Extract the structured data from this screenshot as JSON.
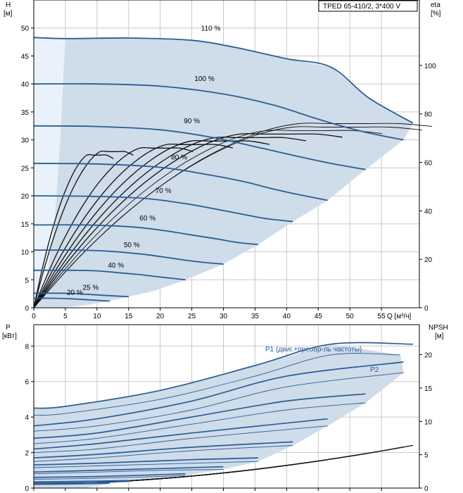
{
  "chart_data": [
    {
      "type": "line",
      "legend_box": "TPED 65-410/2, 3*400 V",
      "xlabel": "Q [м³/ч]",
      "ylabel_top": "H",
      "ylabel_bottom": "[м]",
      "y2label_top": "eta",
      "y2label_bottom": "[%]",
      "xlim": [
        0,
        61
      ],
      "ylim": [
        0,
        55
      ],
      "y2lim": [
        0,
        127
      ],
      "x_ticks": [
        "0",
        "5",
        "10",
        "15",
        "20",
        "25",
        "30",
        "35",
        "40",
        "45",
        "50",
        "55"
      ],
      "y_ticks": [
        "0",
        "5",
        "10",
        "15",
        "20",
        "25",
        "30",
        "35",
        "40",
        "45",
        "50"
      ],
      "y2_ticks": [
        "0",
        "20",
        "40",
        "60",
        "80",
        "100"
      ],
      "grid": true,
      "head_curves": [
        {
          "label": "110 %",
          "label_at": [
            28,
            49.5
          ],
          "points": [
            [
              0,
              48.3
            ],
            [
              5,
              48.1
            ],
            [
              15,
              48.2
            ],
            [
              25,
              47.8
            ],
            [
              32,
              46.5
            ],
            [
              40,
              44.5
            ],
            [
              47,
              43
            ],
            [
              53,
              37.5
            ],
            [
              60,
              33
            ]
          ]
        },
        {
          "label": "100 %",
          "label_at": [
            27,
            40.5
          ],
          "points": [
            [
              0,
              40
            ],
            [
              10,
              40
            ],
            [
              20,
              39.6
            ],
            [
              30,
              38.2
            ],
            [
              38,
              36.2
            ],
            [
              45,
              33.7
            ],
            [
              52,
              31.5
            ],
            [
              58.5,
              30
            ]
          ]
        },
        {
          "label": "90 %",
          "label_at": [
            25,
            33
          ],
          "points": [
            [
              0,
              32.5
            ],
            [
              10,
              32.4
            ],
            [
              20,
              31.8
            ],
            [
              28,
              30.5
            ],
            [
              35,
              28.8
            ],
            [
              42,
              27
            ],
            [
              47,
              25.8
            ],
            [
              52.5,
              24.7
            ]
          ]
        },
        {
          "label": "80 %",
          "label_at": [
            23,
            26.5
          ],
          "points": [
            [
              0,
              25.8
            ],
            [
              10,
              25.7
            ],
            [
              20,
              25.1
            ],
            [
              27,
              23.9
            ],
            [
              33,
              22.6
            ],
            [
              38,
              21.2
            ],
            [
              42,
              20.2
            ],
            [
              46.5,
              19.2
            ]
          ]
        },
        {
          "label": "70 %",
          "label_at": [
            20.5,
            20.5
          ],
          "points": [
            [
              0,
              20
            ],
            [
              10,
              19.9
            ],
            [
              18,
              19.5
            ],
            [
              24,
              18.6
            ],
            [
              29,
              17.6
            ],
            [
              34,
              16.5
            ],
            [
              37,
              15.9
            ],
            [
              41,
              15.4
            ]
          ]
        },
        {
          "label": "60 %",
          "label_at": [
            18,
            15.6
          ],
          "points": [
            [
              0,
              14.8
            ],
            [
              8,
              14.8
            ],
            [
              15,
              14.5
            ],
            [
              20,
              13.9
            ],
            [
              25,
              13
            ],
            [
              29,
              12.3
            ],
            [
              32,
              11.7
            ],
            [
              35.5,
              11.3
            ]
          ]
        },
        {
          "label": "50 %",
          "label_at": [
            15.5,
            10.8
          ],
          "points": [
            [
              0,
              10.3
            ],
            [
              7,
              10.3
            ],
            [
              12,
              10.1
            ],
            [
              17,
              9.6
            ],
            [
              21,
              9
            ],
            [
              24,
              8.5
            ],
            [
              27,
              8.1
            ],
            [
              30,
              7.8
            ]
          ]
        },
        {
          "label": "40 %",
          "label_at": [
            13,
            7.2
          ],
          "points": [
            [
              0,
              6.7
            ],
            [
              6,
              6.7
            ],
            [
              10,
              6.6
            ],
            [
              14,
              6.2
            ],
            [
              17,
              5.9
            ],
            [
              20,
              5.5
            ],
            [
              24,
              5
            ]
          ]
        },
        {
          "label": "25 %",
          "label_at": [
            9,
            3.2
          ],
          "points": [
            [
              0,
              2.6
            ],
            [
              4,
              2.6
            ],
            [
              7,
              2.5
            ],
            [
              10,
              2.3
            ],
            [
              13,
              2.1
            ],
            [
              15,
              2
            ]
          ]
        },
        {
          "label": "20 %",
          "label_at": [
            6.5,
            2.3
          ],
          "points": [
            [
              0,
              1.7
            ],
            [
              3,
              1.7
            ],
            [
              6,
              1.6
            ],
            [
              9,
              1.4
            ],
            [
              12,
              1.2
            ]
          ]
        }
      ],
      "operating_envelope": [
        [
          0,
          0
        ],
        [
          0,
          48.3
        ],
        [
          5,
          48.1
        ],
        [
          15,
          48.2
        ],
        [
          25,
          47.8
        ],
        [
          32,
          46.5
        ],
        [
          40,
          44.5
        ],
        [
          47,
          43
        ],
        [
          53,
          37.5
        ],
        [
          60,
          33
        ],
        [
          58.5,
          30
        ],
        [
          52.5,
          24.7
        ],
        [
          46.5,
          19.2
        ],
        [
          41,
          15.4
        ],
        [
          35.5,
          11.3
        ],
        [
          30,
          7.8
        ],
        [
          24,
          5
        ],
        [
          19,
          3
        ],
        [
          15,
          2
        ],
        [
          12,
          1.2
        ],
        [
          8,
          0.4
        ],
        [
          4,
          0
        ]
      ]
    },
    {
      "type": "line",
      "ylabel_top": "P",
      "ylabel_bottom": "[кВт]",
      "y2label_top": "NPSH",
      "y2label_bottom": "[м]",
      "xlim": [
        0,
        61
      ],
      "ylim": [
        0,
        9.2
      ],
      "y2lim": [
        0,
        24.5
      ],
      "y_ticks": [
        "0",
        "2",
        "4",
        "6",
        "8"
      ],
      "y2_ticks": [
        "0",
        "5",
        "10",
        "15",
        "20"
      ],
      "grid": true,
      "p1_label": "P1 (двиг.+преобр-ль частоты)",
      "p2_label": "P2",
      "power_curves": [
        {
          "p1": [
            [
              0,
              4.5
            ],
            [
              5,
              4.6
            ],
            [
              20,
              5.5
            ],
            [
              35,
              6.9
            ],
            [
              47,
              8.1
            ],
            [
              60,
              8.1
            ]
          ],
          "p2": [
            [
              0,
              4.1
            ],
            [
              5,
              4.2
            ],
            [
              20,
              5
            ],
            [
              35,
              6.3
            ],
            [
              47,
              7.5
            ],
            [
              58,
              7.5
            ]
          ]
        },
        {
          "p1": [
            [
              0,
              3.5
            ],
            [
              10,
              3.9
            ],
            [
              25,
              4.9
            ],
            [
              40,
              6.3
            ],
            [
              58.5,
              7.1
            ]
          ],
          "p2": [
            [
              0,
              3.2
            ],
            [
              10,
              3.5
            ],
            [
              25,
              4.4
            ],
            [
              40,
              5.7
            ],
            [
              58.5,
              6.5
            ]
          ]
        },
        {
          "p1": [
            [
              0,
              2.8
            ],
            [
              10,
              3.1
            ],
            [
              25,
              4
            ],
            [
              40,
              4.9
            ],
            [
              52.5,
              5.3
            ]
          ],
          "p2": [
            [
              0,
              2.5
            ],
            [
              10,
              2.8
            ],
            [
              25,
              3.6
            ],
            [
              40,
              4.4
            ],
            [
              52.5,
              4.8
            ]
          ]
        },
        {
          "p1": [
            [
              0,
              2.2
            ],
            [
              10,
              2.5
            ],
            [
              25,
              3.1
            ],
            [
              46.5,
              3.9
            ]
          ],
          "p2": [
            [
              0,
              2
            ],
            [
              10,
              2.2
            ],
            [
              25,
              2.8
            ],
            [
              46.5,
              3.5
            ]
          ]
        },
        {
          "p1": [
            [
              0,
              1.7
            ],
            [
              10,
              1.9
            ],
            [
              25,
              2.3
            ],
            [
              41,
              2.6
            ]
          ],
          "p2": [
            [
              0,
              1.5
            ],
            [
              10,
              1.7
            ],
            [
              25,
              2.1
            ],
            [
              41,
              2.4
            ]
          ]
        },
        {
          "p1": [
            [
              0,
              1.3
            ],
            [
              10,
              1.4
            ],
            [
              25,
              1.6
            ],
            [
              35.5,
              1.7
            ]
          ],
          "p2": [
            [
              0,
              1.15
            ],
            [
              10,
              1.25
            ],
            [
              25,
              1.4
            ],
            [
              35.5,
              1.5
            ]
          ]
        },
        {
          "p1": [
            [
              0,
              0.9
            ],
            [
              10,
              1
            ],
            [
              20,
              1.1
            ],
            [
              30,
              1.2
            ]
          ],
          "p2": [
            [
              0,
              0.8
            ],
            [
              10,
              0.9
            ],
            [
              20,
              1
            ],
            [
              30,
              1.05
            ]
          ]
        },
        {
          "p1": [
            [
              0,
              0.6
            ],
            [
              10,
              0.65
            ],
            [
              24,
              0.8
            ]
          ],
          "p2": [
            [
              0,
              0.5
            ],
            [
              10,
              0.55
            ],
            [
              24,
              0.7
            ]
          ]
        },
        {
          "p1": [
            [
              0,
              0.35
            ],
            [
              8,
              0.38
            ],
            [
              15,
              0.42
            ]
          ],
          "p2": [
            [
              0,
              0.3
            ],
            [
              8,
              0.32
            ],
            [
              15,
              0.36
            ]
          ]
        },
        {
          "p1": [
            [
              0,
              0.25
            ],
            [
              6,
              0.27
            ],
            [
              12,
              0.3
            ]
          ],
          "p2": [
            [
              0,
              0.2
            ],
            [
              6,
              0.22
            ],
            [
              12,
              0.25
            ]
          ]
        }
      ],
      "power_envelope": [
        [
          0,
          0
        ],
        [
          0,
          4.5
        ],
        [
          5,
          4.6
        ],
        [
          20,
          5.5
        ],
        [
          35,
          6.9
        ],
        [
          47,
          8.1
        ],
        [
          58,
          7.5
        ],
        [
          58.5,
          6.5
        ],
        [
          52.5,
          4.8
        ],
        [
          46.5,
          3.5
        ],
        [
          41,
          2.4
        ],
        [
          35.5,
          1.5
        ],
        [
          30,
          1.05
        ],
        [
          24,
          0.7
        ],
        [
          15,
          0.36
        ],
        [
          12,
          0.25
        ],
        [
          8,
          0
        ]
      ]
    }
  ]
}
